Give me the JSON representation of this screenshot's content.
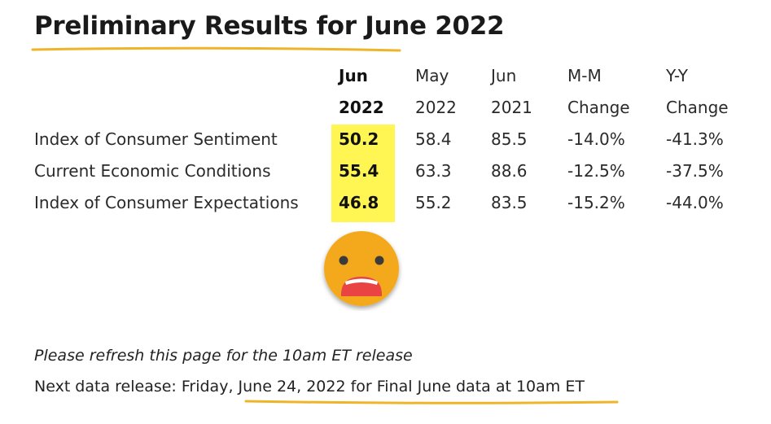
{
  "title": "Preliminary Results for June 2022",
  "accent_color": "#f0b429",
  "highlight_color": "#fff653",
  "table": {
    "headers": [
      {
        "line1": "Jun",
        "line2": "2022"
      },
      {
        "line1": "May",
        "line2": "2022"
      },
      {
        "line1": "Jun",
        "line2": "2021"
      },
      {
        "line1": "M-M",
        "line2": "Change"
      },
      {
        "line1": "Y-Y",
        "line2": "Change"
      }
    ],
    "rows": [
      {
        "label": "Index of Consumer Sentiment",
        "values": [
          "50.2",
          "58.4",
          "85.5",
          "-14.0%",
          "-41.3%"
        ]
      },
      {
        "label": "Current Economic Conditions",
        "values": [
          "55.4",
          "63.3",
          "88.6",
          "-12.5%",
          "-37.5%"
        ]
      },
      {
        "label": "Index of Consumer Expectations",
        "values": [
          "46.8",
          "55.2",
          "83.5",
          "-15.2%",
          "-44.0%"
        ]
      }
    ]
  },
  "emoji_icon": "shocked-face-icon",
  "note": "Please refresh this page for the 10am ET release",
  "next_release": "Next data release: Friday, June 24, 2022 for Final June data at 10am ET"
}
